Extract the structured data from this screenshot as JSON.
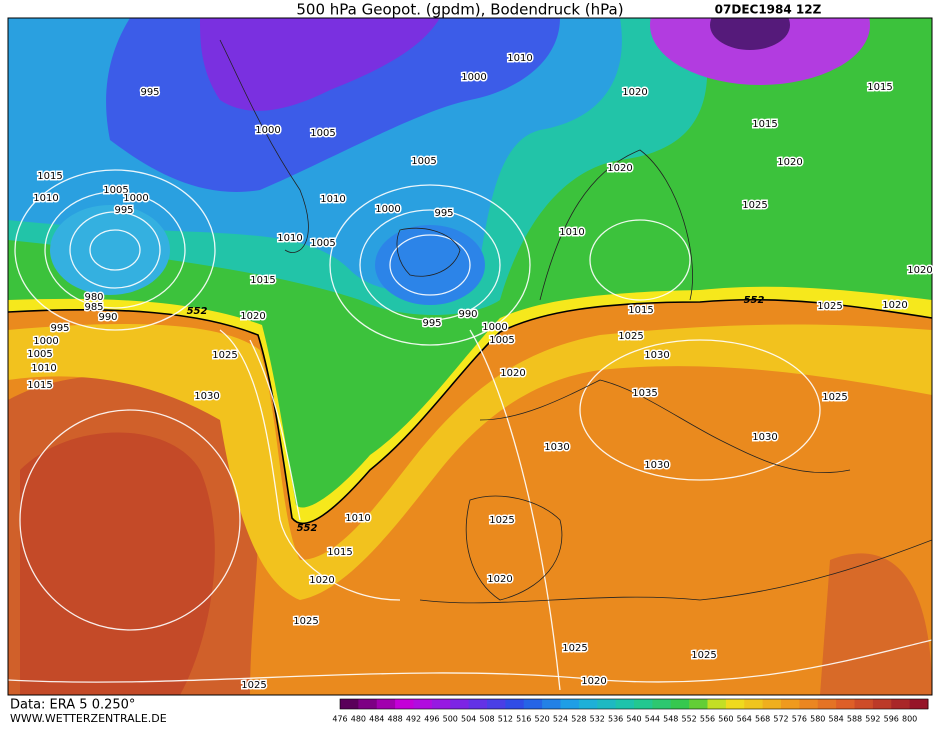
{
  "header": {
    "title": "500 hPa Geopot. (gpdm), Bodendruck (hPa)",
    "date": "07DEC1984 12Z"
  },
  "footer": {
    "data": "Data: ERA 5 0.250°",
    "site": "WWW.WETTERZENTRALE.DE"
  },
  "colorbar": {
    "labels": [
      "476",
      "480",
      "484",
      "488",
      "492",
      "496",
      "500",
      "504",
      "508",
      "512",
      "516",
      "520",
      "524",
      "528",
      "532",
      "536",
      "540",
      "544",
      "548",
      "552",
      "556",
      "560",
      "564",
      "568",
      "572",
      "576",
      "580",
      "584",
      "588",
      "592",
      "596",
      "800"
    ]
  },
  "geopotential_labels": [
    "552",
    "552",
    "552"
  ],
  "isobar_labels": [
    "995",
    "1000",
    "1005",
    "1000",
    "1010",
    "1020",
    "1015",
    "1015",
    "1020",
    "1020",
    "1025",
    "1005",
    "995",
    "1000",
    "1010",
    "1010",
    "1005",
    "1015",
    "1010",
    "1005",
    "1000",
    "995",
    "1015",
    "1020",
    "1025",
    "1030",
    "1020",
    "1020",
    "1025",
    "1010",
    "1015",
    "1025",
    "1030",
    "1035",
    "1030",
    "1030",
    "1025",
    "1030",
    "1020",
    "1005",
    "1000",
    "990",
    "995",
    "990",
    "985",
    "980",
    "995",
    "1000",
    "1005",
    "1010",
    "1015",
    "1010",
    "1015",
    "1020",
    "1025",
    "1025",
    "1020",
    "1025",
    "1025",
    "1020",
    "1025"
  ]
}
